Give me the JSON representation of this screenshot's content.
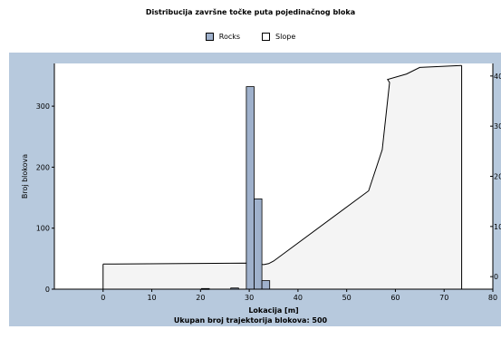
{
  "chart_data": {
    "type": "bar",
    "title": "Distribucija završne točke puta pojedinačnog bloka",
    "xlabel": "Lokacija [m]",
    "ylabel": "Broj blokova",
    "footer": "Ukupan broj trajektorija blokova:  500",
    "xlim": [
      -10,
      80
    ],
    "ylim": [
      0,
      370
    ],
    "x_ticks": [
      0,
      10,
      20,
      30,
      40,
      50,
      60,
      70,
      80
    ],
    "y_ticks": [
      0,
      100,
      200,
      300
    ],
    "y2_ticks": [
      "0",
      "10",
      "20",
      "30",
      "40"
    ],
    "y2lim": [
      -2.5,
      42.5
    ],
    "legend_position": "top-center",
    "series": [
      {
        "name": "Rocks",
        "type": "bar",
        "color": "#9fb1cc",
        "bar_width": 1.6,
        "bars": [
          {
            "x": 21,
            "value": 1
          },
          {
            "x": 27,
            "value": 2
          },
          {
            "x": 30.2,
            "value": 332
          },
          {
            "x": 31.8,
            "value": 148
          },
          {
            "x": 33.4,
            "value": 14
          }
        ]
      },
      {
        "name": "Slope",
        "type": "area",
        "color": "#f4f4f4",
        "points": [
          [
            0,
            2.5
          ],
          [
            29.5,
            2.7
          ],
          [
            33,
            2.4
          ],
          [
            34,
            2.6
          ],
          [
            35,
            3.1
          ],
          [
            54.5,
            17.1
          ],
          [
            57.3,
            25.3
          ],
          [
            58.8,
            38.7
          ],
          [
            58.4,
            39.3
          ],
          [
            62.3,
            40.4
          ],
          [
            65.0,
            41.7
          ],
          [
            73.6,
            42.1
          ]
        ]
      }
    ],
    "colors": {
      "panel": "#b7c9dd",
      "plot_bg": "#ffffff",
      "bar_stroke": "#000000"
    }
  }
}
